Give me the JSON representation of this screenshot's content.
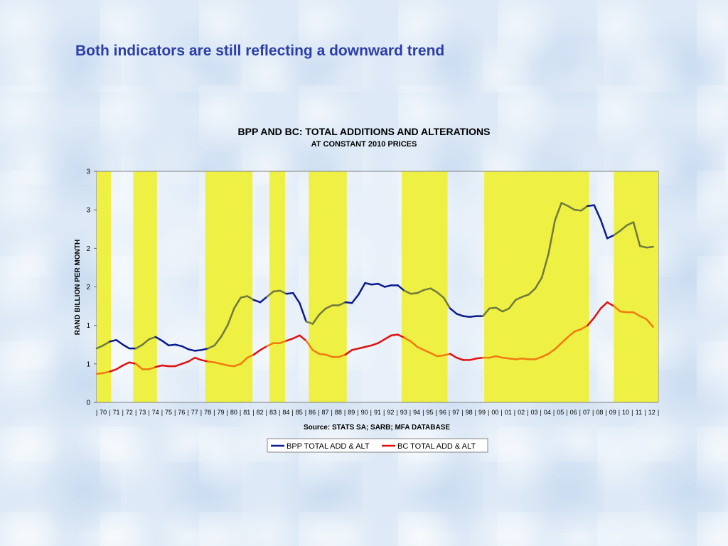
{
  "slide": {
    "title": "Both indicators are still reflecting a downward trend"
  },
  "chart_data": {
    "type": "line",
    "title": "BPP AND BC:  TOTAL ADDITIONS AND ALTERATIONS",
    "subtitle": "AT CONSTANT 2010 PRICES",
    "ylabel": "RAND BILLION PER MONTH",
    "xlabel": "",
    "source": "Source: STATS SA; SARB; MFA DATABASE",
    "ylim": [
      0,
      3
    ],
    "y_tick_labels": [
      "0",
      "1",
      "1",
      "2",
      "2",
      "3",
      "3"
    ],
    "x_tick_labels": [
      "70",
      "71",
      "72",
      "73",
      "74",
      "75",
      "76",
      "77",
      "78",
      "79",
      "80",
      "81",
      "82",
      "83",
      "84",
      "85",
      "86",
      "87",
      "88",
      "89",
      "90",
      "91",
      "92",
      "93",
      "94",
      "95",
      "96",
      "97",
      "98",
      "99",
      "00",
      "01",
      "02",
      "03",
      "04",
      "05",
      "06",
      "07",
      "08",
      "09",
      "10",
      "11",
      "12"
    ],
    "xlim": [
      1970,
      2012.9
    ],
    "legend_position": "bottom",
    "shaded_periods": [
      [
        1970.0,
        1971.1
      ],
      [
        1972.8,
        1974.6
      ],
      [
        1978.3,
        1981.9
      ],
      [
        1983.2,
        1984.4
      ],
      [
        1986.2,
        1989.1
      ],
      [
        1993.3,
        1996.8
      ],
      [
        1999.6,
        2007.6
      ],
      [
        2009.5,
        2012.9
      ]
    ],
    "shade_color": "#eef043",
    "series": [
      {
        "name": "BPP TOTAL ADD & ALT",
        "color": "#0a1a8c",
        "shaded_color": "#6f7a3c",
        "x": [
          1970.0,
          1970.5,
          1971.0,
          1971.5,
          1972.0,
          1972.5,
          1973.0,
          1973.5,
          1974.0,
          1974.5,
          1975.0,
          1975.5,
          1976.0,
          1976.5,
          1977.0,
          1977.5,
          1978.0,
          1978.5,
          1979.0,
          1979.5,
          1980.0,
          1980.5,
          1981.0,
          1981.5,
          1982.0,
          1982.5,
          1983.0,
          1983.5,
          1984.0,
          1984.5,
          1985.0,
          1985.5,
          1986.0,
          1986.5,
          1987.0,
          1987.5,
          1988.0,
          1988.5,
          1989.0,
          1989.5,
          1990.0,
          1990.5,
          1991.0,
          1991.5,
          1992.0,
          1992.5,
          1993.0,
          1993.5,
          1994.0,
          1994.5,
          1995.0,
          1995.5,
          1996.0,
          1996.5,
          1997.0,
          1997.5,
          1998.0,
          1998.5,
          1999.0,
          1999.5,
          2000.0,
          2000.5,
          2001.0,
          2001.5,
          2002.0,
          2002.5,
          2003.0,
          2003.5,
          2004.0,
          2004.5,
          2005.0,
          2005.5,
          2006.0,
          2006.5,
          2007.0,
          2007.5,
          2008.0,
          2008.5,
          2009.0,
          2009.5,
          2010.0,
          2010.5,
          2011.0,
          2011.5,
          2012.0,
          2012.5
        ],
        "y": [
          0.7,
          0.74,
          0.79,
          0.81,
          0.75,
          0.7,
          0.7,
          0.75,
          0.82,
          0.85,
          0.8,
          0.74,
          0.75,
          0.73,
          0.69,
          0.67,
          0.68,
          0.7,
          0.74,
          0.85,
          1.0,
          1.22,
          1.36,
          1.38,
          1.33,
          1.3,
          1.37,
          1.44,
          1.45,
          1.41,
          1.42,
          1.29,
          1.05,
          1.02,
          1.14,
          1.22,
          1.26,
          1.26,
          1.3,
          1.29,
          1.4,
          1.55,
          1.53,
          1.54,
          1.5,
          1.52,
          1.52,
          1.45,
          1.41,
          1.42,
          1.46,
          1.48,
          1.43,
          1.36,
          1.22,
          1.15,
          1.12,
          1.11,
          1.12,
          1.12,
          1.22,
          1.23,
          1.18,
          1.22,
          1.33,
          1.37,
          1.4,
          1.48,
          1.62,
          1.92,
          2.36,
          2.59,
          2.55,
          2.5,
          2.49,
          2.55,
          2.56,
          2.37,
          2.13,
          2.17,
          2.23,
          2.3,
          2.34,
          2.03,
          2.01,
          2.02
        ]
      },
      {
        "name": "BC TOTAL ADD & ALT",
        "color": "#e01010",
        "shaded_color": "#f07a10",
        "x": [
          1970.0,
          1970.5,
          1971.0,
          1971.5,
          1972.0,
          1972.5,
          1973.0,
          1973.5,
          1974.0,
          1974.5,
          1975.0,
          1975.5,
          1976.0,
          1976.5,
          1977.0,
          1977.5,
          1978.0,
          1978.5,
          1979.0,
          1979.5,
          1980.0,
          1980.5,
          1981.0,
          1981.5,
          1982.0,
          1982.5,
          1983.0,
          1983.5,
          1984.0,
          1984.5,
          1985.0,
          1985.5,
          1986.0,
          1986.5,
          1987.0,
          1987.5,
          1988.0,
          1988.5,
          1989.0,
          1989.5,
          1990.0,
          1990.5,
          1991.0,
          1991.5,
          1992.0,
          1992.5,
          1993.0,
          1993.5,
          1994.0,
          1994.5,
          1995.0,
          1995.5,
          1996.0,
          1996.5,
          1997.0,
          1997.5,
          1998.0,
          1998.5,
          1999.0,
          1999.5,
          2000.0,
          2000.5,
          2001.0,
          2001.5,
          2002.0,
          2002.5,
          2003.0,
          2003.5,
          2004.0,
          2004.5,
          2005.0,
          2005.5,
          2006.0,
          2006.5,
          2007.0,
          2007.5,
          2008.0,
          2008.5,
          2009.0,
          2009.5,
          2010.0,
          2010.5,
          2011.0,
          2011.5,
          2012.0,
          2012.5
        ],
        "y": [
          0.37,
          0.38,
          0.4,
          0.43,
          0.48,
          0.52,
          0.5,
          0.43,
          0.43,
          0.46,
          0.48,
          0.47,
          0.47,
          0.5,
          0.53,
          0.58,
          0.55,
          0.53,
          0.52,
          0.5,
          0.48,
          0.47,
          0.5,
          0.58,
          0.62,
          0.68,
          0.73,
          0.77,
          0.77,
          0.8,
          0.83,
          0.87,
          0.8,
          0.68,
          0.63,
          0.62,
          0.59,
          0.59,
          0.62,
          0.68,
          0.7,
          0.72,
          0.74,
          0.77,
          0.82,
          0.87,
          0.88,
          0.84,
          0.79,
          0.72,
          0.68,
          0.64,
          0.6,
          0.61,
          0.63,
          0.58,
          0.55,
          0.55,
          0.57,
          0.58,
          0.58,
          0.6,
          0.58,
          0.57,
          0.56,
          0.57,
          0.56,
          0.56,
          0.59,
          0.63,
          0.69,
          0.77,
          0.85,
          0.92,
          0.95,
          1.0,
          1.1,
          1.22,
          1.3,
          1.25,
          1.18,
          1.17,
          1.17,
          1.12,
          1.08,
          0.98
        ]
      }
    ]
  }
}
